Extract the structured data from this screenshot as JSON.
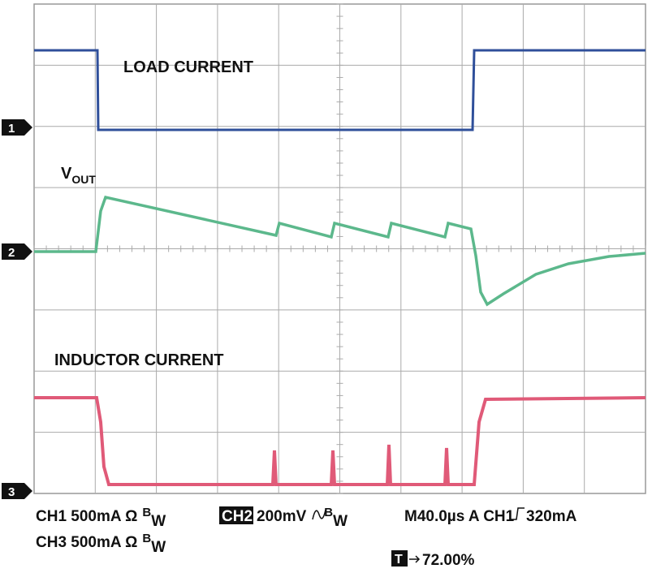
{
  "traces": {
    "load": "LOAD CURRENT",
    "vout": "V",
    "vout_sub": "OUT",
    "inductor": "INDUCTOR CURRENT"
  },
  "markers": [
    "1",
    "2",
    "3"
  ],
  "settings": {
    "ch1": "CH1 500mA Ω",
    "bw_b": "B",
    "bw_w": "W",
    "ch2_label": "CH2",
    "ch2": "200mV",
    "timebase": "M40.0µs A CH1",
    "trigger_level": "320mA",
    "ch3": "CH3 500mA Ω",
    "trigger_icon": "T",
    "trigger_pos": "72.00%"
  }
}
